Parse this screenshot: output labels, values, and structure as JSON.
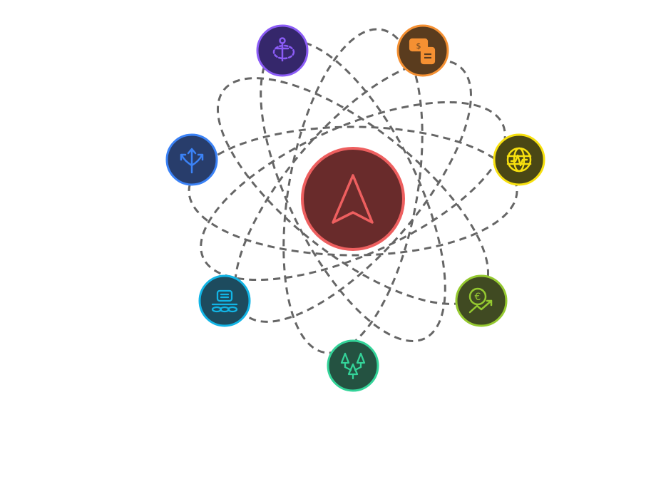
{
  "diagram": {
    "type": "orbital-hub",
    "orbit_stroke_color": "#666666",
    "center": {
      "icon": "navigation-arrow-icon",
      "fill": "#692b2b",
      "stroke": "#ee5f5f"
    },
    "nodes": [
      {
        "id": "node-1",
        "icon": "person-target-icon",
        "fill": "#35276b",
        "stroke": "#8b5cf6"
      },
      {
        "id": "node-2",
        "icon": "money-calculator-icon",
        "fill": "#5a3c1e",
        "stroke": "#f59032"
      },
      {
        "id": "node-3",
        "icon": "globe-chart-icon",
        "fill": "#4a4715",
        "stroke": "#f7e00f"
      },
      {
        "id": "node-4",
        "icon": "euro-growth-icon",
        "fill": "#404a22",
        "stroke": "#95c930"
      },
      {
        "id": "node-5",
        "icon": "tree-network-icon",
        "fill": "#245241",
        "stroke": "#34d399"
      },
      {
        "id": "node-6",
        "icon": "stacked-coins-icon",
        "fill": "#1d4b5e",
        "stroke": "#12b5e6"
      },
      {
        "id": "node-7",
        "icon": "split-arrows-icon",
        "fill": "#283d6b",
        "stroke": "#3b82f6"
      }
    ]
  }
}
